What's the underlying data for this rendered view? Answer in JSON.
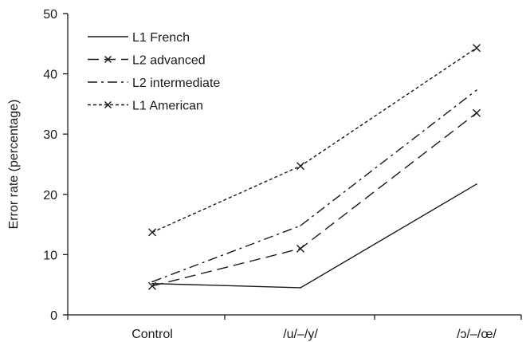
{
  "chart_data": {
    "type": "line",
    "categories": [
      "Control",
      "/u/–/y/",
      "/ɔ/–/œ/"
    ],
    "ylabel": "Error rate (percentage)",
    "xlabel": "",
    "ylim": [
      0,
      50
    ],
    "yticks": [
      0,
      10,
      20,
      30,
      40,
      50
    ],
    "grid": false,
    "legend_position": "top-left",
    "series": [
      {
        "name": "L1 French",
        "values": [
          5.2,
          4.5,
          21.7
        ],
        "line_style": "solid",
        "marker": "none",
        "color": "#1a1a1a"
      },
      {
        "name": "L2 advanced",
        "values": [
          4.8,
          11.0,
          33.5
        ],
        "line_style": "dashed",
        "marker": "x",
        "color": "#1a1a1a"
      },
      {
        "name": "L2 intermediate",
        "values": [
          5.5,
          14.8,
          37.3
        ],
        "line_style": "dash-dot",
        "marker": "none",
        "color": "#1a1a1a"
      },
      {
        "name": "L1 American",
        "values": [
          13.7,
          24.7,
          44.3
        ],
        "line_style": "dotted",
        "marker": "x",
        "color": "#1a1a1a"
      }
    ]
  }
}
